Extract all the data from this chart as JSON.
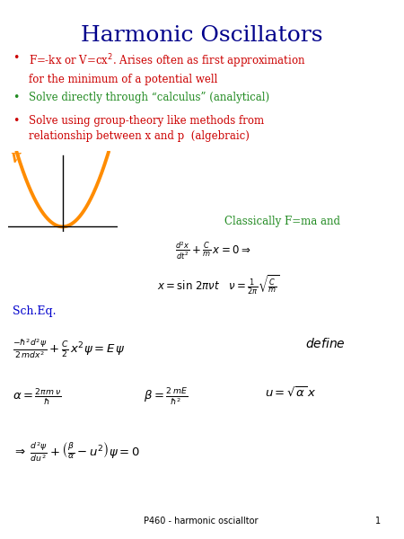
{
  "title": "Harmonic Oscillators",
  "title_color": "#00008B",
  "title_fontsize": 18,
  "bg_color": "#ffffff",
  "bullet1_color": "#CC0000",
  "bullet2_color": "#228B22",
  "bullet3_color": "#CC0000",
  "classically_color": "#228B22",
  "schEq_color": "#0000CC",
  "footer": "P460 - harmonic oscialltor",
  "footer_page": "1"
}
